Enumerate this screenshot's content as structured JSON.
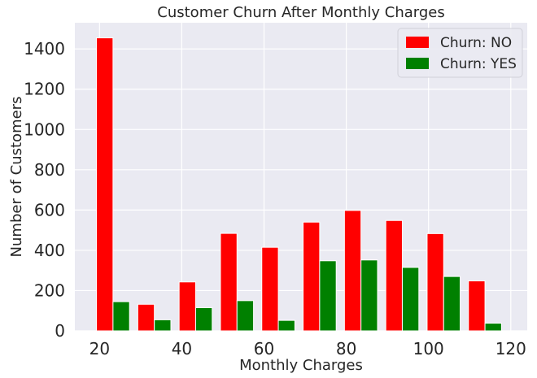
{
  "chart_data": {
    "type": "bar",
    "title": "Customer Churn After Monthly Charges",
    "xlabel": "Monthly Charges",
    "ylabel": "Number of Customers",
    "xlim": [
      14,
      124
    ],
    "ylim": [
      0,
      1530
    ],
    "xticks": [
      20,
      40,
      60,
      80,
      100,
      120
    ],
    "yticks": [
      0,
      200,
      400,
      600,
      800,
      1000,
      1200,
      1400
    ],
    "grid": true,
    "legend_position": "top-right",
    "bin_edges": [
      18.25,
      28.3,
      38.35,
      48.4,
      58.45,
      68.5,
      78.55,
      88.6,
      98.65,
      108.7,
      118.75
    ],
    "series": [
      {
        "name": "Churn: NO",
        "color": "#ff0000",
        "values": [
          1455,
          132,
          243,
          484,
          415,
          540,
          598,
          548,
          483,
          248
        ]
      },
      {
        "name": "Churn: YES",
        "color": "#008000",
        "values": [
          145,
          55,
          115,
          150,
          52,
          348,
          352,
          315,
          270,
          38
        ]
      }
    ],
    "background_color": "#eaeaf2",
    "grid_color": "#ffffff"
  }
}
